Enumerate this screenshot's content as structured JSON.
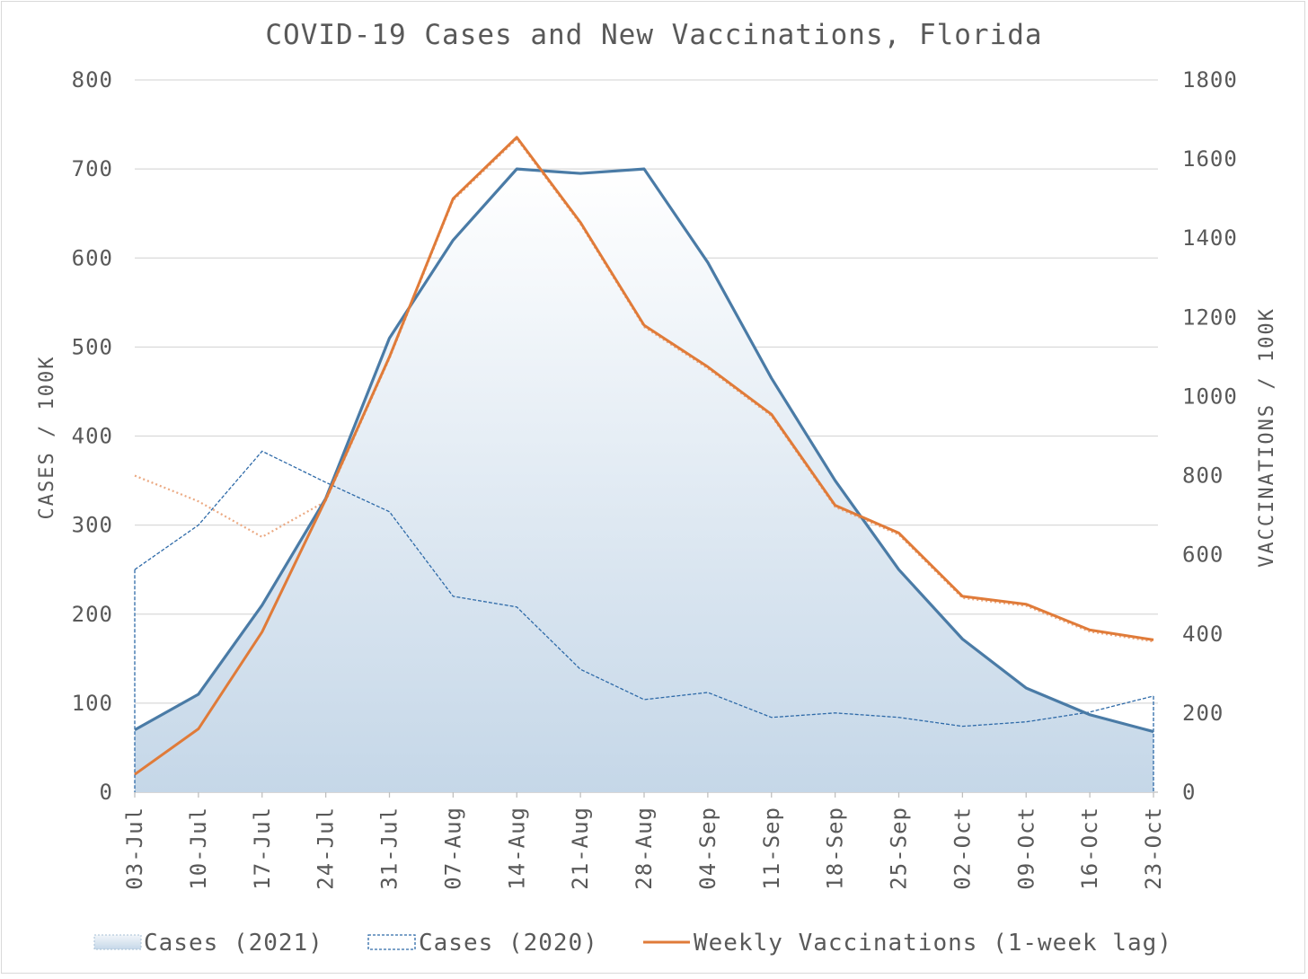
{
  "chart_data": {
    "type": "line",
    "title": "COVID-19 Cases and New Vaccinations, Florida",
    "categories": [
      "03-Jul",
      "10-Jul",
      "17-Jul",
      "24-Jul",
      "31-Jul",
      "07-Aug",
      "14-Aug",
      "21-Aug",
      "28-Aug",
      "04-Sep",
      "11-Sep",
      "18-Sep",
      "25-Sep",
      "02-Oct",
      "09-Oct",
      "16-Oct",
      "23-Oct"
    ],
    "y_left": {
      "label": "CASES / 100K",
      "range": [
        0,
        800
      ],
      "ticks": [
        "0",
        "100",
        "200",
        "300",
        "400",
        "500",
        "600",
        "700",
        "800"
      ],
      "tick_values": [
        0,
        100,
        200,
        300,
        400,
        500,
        600,
        700,
        800
      ]
    },
    "y_right": {
      "label": "VACCINATIONS / 100K",
      "range": [
        0,
        1800
      ],
      "ticks": [
        "0",
        "200",
        "400",
        "600",
        "800",
        "1000",
        "1200",
        "1400",
        "1600",
        "1800"
      ],
      "tick_values": [
        0,
        200,
        400,
        600,
        800,
        1000,
        1200,
        1400,
        1600,
        1800
      ]
    },
    "grid": true,
    "legend_position": "bottom",
    "series": [
      {
        "name": "Cases (2021)",
        "axis": "left",
        "style": "area",
        "color": "#4a7ba6",
        "values": [
          70,
          110,
          210,
          330,
          510,
          620,
          700,
          695,
          700,
          595,
          465,
          350,
          250,
          172,
          117,
          87,
          68
        ]
      },
      {
        "name": "Cases (2020)",
        "axis": "left",
        "style": "dashed",
        "color": "#2e6aa8",
        "values": [
          250,
          300,
          383,
          348,
          315,
          220,
          208,
          138,
          104,
          112,
          84,
          89,
          84,
          74,
          79,
          90,
          108
        ]
      },
      {
        "name": "Weekly Vaccinations (1-week lag)",
        "axis": "right",
        "style": "line",
        "color": "#e07b39",
        "values": [
          45,
          160,
          405,
          740,
          1100,
          1500,
          1655,
          1440,
          1180,
          1075,
          955,
          725,
          655,
          495,
          475,
          410,
          385
        ],
        "dotted_prefix": [
          800,
          735,
          645,
          735
        ]
      }
    ]
  }
}
